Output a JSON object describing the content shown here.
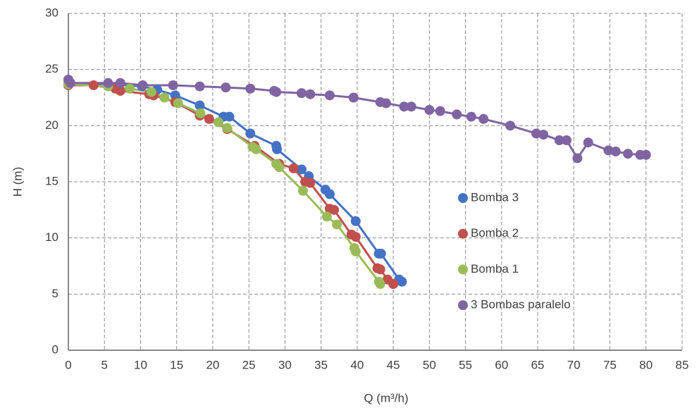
{
  "chart_data": {
    "type": "scatter",
    "xlabel": "Q (m³/h)",
    "ylabel": "H (m)",
    "xlim": [
      0,
      85
    ],
    "ylim": [
      0,
      30
    ],
    "xticks": [
      0,
      5,
      10,
      15,
      20,
      25,
      30,
      35,
      40,
      45,
      50,
      55,
      60,
      65,
      70,
      75,
      80,
      85
    ],
    "yticks": [
      0,
      5,
      10,
      15,
      20,
      25,
      30
    ],
    "grid": true,
    "trendline": true,
    "legend": "right",
    "series": [
      {
        "name": "Bomba 3",
        "color": "#4472c4",
        "x": [
          0,
          5.5,
          10.2,
          12.3,
          14.8,
          18.2,
          21.5,
          22.3,
          25.2,
          28.8,
          28.9,
          32.3,
          33.3,
          35.6,
          36.2,
          39.8,
          43.0,
          43.3,
          45.8,
          46.2
        ],
        "values": [
          23.8,
          23.7,
          23.5,
          23.2,
          22.7,
          21.8,
          20.8,
          20.8,
          19.3,
          18.2,
          17.9,
          16.1,
          15.5,
          14.3,
          13.9,
          11.5,
          8.6,
          8.6,
          6.3,
          6.1
        ]
      },
      {
        "name": "Bomba 2",
        "color": "#c0504d",
        "x": [
          0,
          3.5,
          6.5,
          7.2,
          11.2,
          11.8,
          14.8,
          18.2,
          19.5,
          22.0,
          25.8,
          29.2,
          31.2,
          32.8,
          33.5,
          36.2,
          36.8,
          39.2,
          39.8,
          42.8,
          43.2,
          44.2,
          45.0
        ],
        "values": [
          23.6,
          23.6,
          23.3,
          23.1,
          22.8,
          22.7,
          22.1,
          20.9,
          20.6,
          19.7,
          18.2,
          16.6,
          16.2,
          15.0,
          14.9,
          12.6,
          12.5,
          10.3,
          10.1,
          7.3,
          7.2,
          6.3,
          5.9
        ]
      },
      {
        "name": "Bomba 1",
        "color": "#9bbb59",
        "x": [
          0,
          5.5,
          8.5,
          11.5,
          13.3,
          15.2,
          18.3,
          20.8,
          22.0,
          25.5,
          26.0,
          28.8,
          29.2,
          32.5,
          35.8,
          37.2,
          39.6,
          39.8,
          43.0,
          43.2
        ],
        "values": [
          23.7,
          23.5,
          23.3,
          23.0,
          22.5,
          22.0,
          21.1,
          20.3,
          19.8,
          18.1,
          17.9,
          16.6,
          16.3,
          14.2,
          11.9,
          11.2,
          9.1,
          8.8,
          6.1,
          5.9
        ]
      },
      {
        "name": "3 Bombas paralelo",
        "color": "#8064a2",
        "x": [
          0,
          0.3,
          5.5,
          7.2,
          10.3,
          14.5,
          18.2,
          21.8,
          25.2,
          28.5,
          28.8,
          32.3,
          33.5,
          36.2,
          39.5,
          43.2,
          44.0,
          46.5,
          47.5,
          50.0,
          51.5,
          53.8,
          55.8,
          57.5,
          61.2,
          64.8,
          65.8,
          68.0,
          69.0,
          70.5,
          72.0,
          74.8,
          75.8,
          77.5,
          79.2,
          80.0
        ],
        "values": [
          24.1,
          23.8,
          23.8,
          23.8,
          23.6,
          23.6,
          23.5,
          23.4,
          23.3,
          23.1,
          23.0,
          22.9,
          22.8,
          22.7,
          22.5,
          22.1,
          22.0,
          21.7,
          21.7,
          21.4,
          21.3,
          21.0,
          20.8,
          20.6,
          20.0,
          19.3,
          19.2,
          18.7,
          18.7,
          17.1,
          18.5,
          17.8,
          17.7,
          17.5,
          17.4,
          17.4
        ]
      }
    ]
  }
}
